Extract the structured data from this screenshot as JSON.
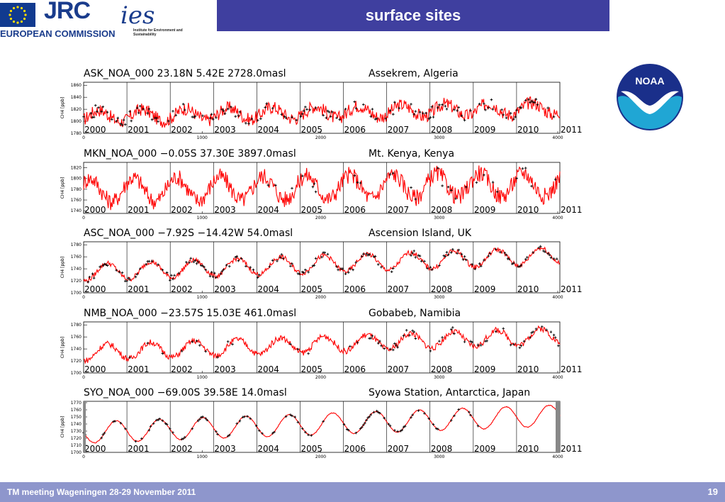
{
  "header": {
    "title": "surface sites",
    "jrc_logo_text": "JRC",
    "ec_text": "EUROPEAN COMMISSION",
    "ies_logo_text": "ies",
    "ies_subtext": "Institute for Environment and Sustainability"
  },
  "noaa_logo_text": "NOAA",
  "footer": {
    "meeting": "TM meeting Wageningen 28-29 November 2011",
    "page_number": "19"
  },
  "colors": {
    "title_bar": "#3f3f9f",
    "footer_bar": "#8e96cc",
    "model_line": "#ff0000",
    "observations": "#000000",
    "noaa_blue": "#1a2f8a",
    "noaa_cyan": "#20a6d4"
  },
  "chart_data": [
    {
      "type": "line",
      "title": "ASK_NOA_000     23.18N    5.42E  2728.0masl",
      "location": "Assekrem, Algeria",
      "ylabel": "CH4 [ppb]",
      "ylim": [
        1780,
        1865
      ],
      "yticks": [
        1780,
        1800,
        1820,
        1840,
        1860
      ],
      "year_labels": [
        "2000",
        "2001",
        "2002",
        "2003",
        "2004",
        "2005",
        "2006",
        "2007",
        "2008",
        "2009",
        "2010",
        "2011"
      ],
      "x_ticks": [
        "0",
        "1000",
        "2000",
        "3000",
        "4000"
      ],
      "xlim": [
        0,
        4018
      ],
      "series": [
        {
          "name": "",
          "role": "model",
          "color": "#ff0000",
          "seasonal_amp": 10,
          "trend": [
            1808,
            1822
          ],
          "noise": 11,
          "peak_phase": 0.35
        },
        {
          "name": "",
          "role": "obs",
          "color": "#000000",
          "marker": "plus",
          "seasonal_amp": 10,
          "trend": [
            1808,
            1822
          ],
          "noise": 10,
          "density": 0.45,
          "start": 0,
          "peak_phase": 0.35
        }
      ]
    },
    {
      "type": "line",
      "title": "MKN_NOA_000     −0.05S   37.30E  3897.0masl",
      "location": "Mt. Kenya, Kenya",
      "ylabel": "CH4 [ppb]",
      "ylim": [
        1735,
        1830
      ],
      "yticks": [
        1740,
        1760,
        1780,
        1800,
        1820
      ],
      "year_labels": [
        "2000",
        "2001",
        "2002",
        "2003",
        "2004",
        "2005",
        "2006",
        "2007",
        "2008",
        "2009",
        "2010",
        "2011"
      ],
      "x_ticks": [
        "0",
        "1000",
        "2000",
        "3000",
        "4000"
      ],
      "xlim": [
        0,
        4018
      ],
      "series": [
        {
          "name": "",
          "role": "model",
          "color": "#ff0000",
          "seasonal_amp": 22,
          "trend": [
            1778,
            1790
          ],
          "noise": 16,
          "peak_phase": 0.15
        },
        {
          "name": "",
          "role": "obs",
          "color": "#000000",
          "marker": "plus",
          "seasonal_amp": 20,
          "trend": [
            1778,
            1790
          ],
          "noise": 14,
          "density": 0.12,
          "start": 0.38,
          "peak_phase": 0.15
        }
      ]
    },
    {
      "type": "line",
      "title": "ASC_NOA_000     −7.92S  −14.42W    54.0masl",
      "location": "Ascension Island, UK",
      "ylabel": "CH4 [ppb]",
      "ylim": [
        1700,
        1785
      ],
      "yticks": [
        1700,
        1720,
        1740,
        1760,
        1780
      ],
      "year_labels": [
        "2000",
        "2001",
        "2002",
        "2003",
        "2004",
        "2005",
        "2006",
        "2007",
        "2008",
        "2009",
        "2010",
        "2011"
      ],
      "x_ticks": [
        "0",
        "1000",
        "2000",
        "3000",
        "4000"
      ],
      "xlim": [
        0,
        4018
      ],
      "series": [
        {
          "name": "",
          "role": "model",
          "color": "#ff0000",
          "seasonal_amp": 14,
          "trend": [
            1734,
            1762
          ],
          "noise": 4,
          "peak_phase": 0.55
        },
        {
          "name": "",
          "role": "obs",
          "color": "#000000",
          "marker": "plus",
          "seasonal_amp": 14,
          "trend": [
            1734,
            1762
          ],
          "noise": 5,
          "density": 0.55,
          "start": 0,
          "peak_phase": 0.55
        }
      ]
    },
    {
      "type": "line",
      "title": "NMB_NOA_000     −23.57S   15.03E   461.0masl",
      "location": "Gobabeb, Namibia",
      "ylabel": "CH4 [ppb]",
      "ylim": [
        1700,
        1785
      ],
      "yticks": [
        1700,
        1720,
        1740,
        1760,
        1780
      ],
      "year_labels": [
        "2000",
        "2001",
        "2002",
        "2003",
        "2004",
        "2005",
        "2006",
        "2007",
        "2008",
        "2009",
        "2010",
        "2011"
      ],
      "x_ticks": [
        "0",
        "1000",
        "2000",
        "3000",
        "4000"
      ],
      "xlim": [
        0,
        4018
      ],
      "series": [
        {
          "name": "",
          "role": "model",
          "color": "#ff0000",
          "seasonal_amp": 13,
          "trend": [
            1734,
            1762
          ],
          "noise": 5,
          "peak_phase": 0.55
        },
        {
          "name": "",
          "role": "obs",
          "color": "#000000",
          "marker": "plus",
          "seasonal_amp": 14,
          "trend": [
            1734,
            1762
          ],
          "noise": 7,
          "density": 0.4,
          "start": 0.6,
          "early_density": 0.12,
          "peak_phase": 0.55
        }
      ]
    },
    {
      "type": "line",
      "title": "SYO_NOA_000    −69.00S   39.58E    14.0masl",
      "location": "Syowa Station, Antarctica, Japan",
      "ylabel": "CH4 [ppb]",
      "ylim": [
        1700,
        1772
      ],
      "yticks": [
        1700,
        1710,
        1720,
        1730,
        1740,
        1750,
        1760,
        1770
      ],
      "year_labels": [
        "2000",
        "2001",
        "2002",
        "2003",
        "2004",
        "2005",
        "2006",
        "2007",
        "2008",
        "2009",
        "2010",
        "2011"
      ],
      "x_ticks": [
        "0",
        "1000",
        "2000",
        "3000",
        "4000"
      ],
      "xlim": [
        0,
        4018
      ],
      "series": [
        {
          "name": "",
          "role": "model",
          "color": "#ff0000",
          "seasonal_amp": 15,
          "trend": [
            1728,
            1752
          ],
          "noise": 0.6,
          "peak_phase": 0.75
        },
        {
          "name": "",
          "role": "obs",
          "color": "#000000",
          "marker": "plus",
          "seasonal_amp": 15,
          "trend": [
            1728,
            1752
          ],
          "noise": 1.2,
          "density": 0.35,
          "start": 0,
          "end": 0.83,
          "peak_phase": 0.75
        }
      ]
    }
  ]
}
